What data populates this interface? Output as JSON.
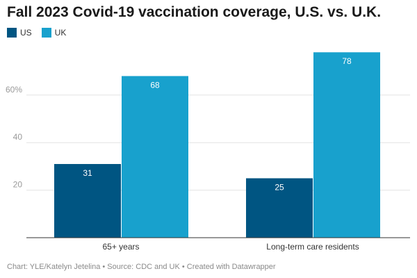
{
  "chart_data": {
    "type": "bar",
    "title": "Fall 2023 Covid-19 vaccination coverage, U.S. vs. U.K.",
    "categories": [
      "65+ years",
      "Long-term care residents"
    ],
    "series": [
      {
        "name": "US",
        "values": [
          31,
          25
        ],
        "color": "#005582"
      },
      {
        "name": "UK",
        "values": [
          68,
          78
        ],
        "color": "#18a1cd"
      }
    ],
    "yticks": [
      {
        "value": 20,
        "label": "20"
      },
      {
        "value": 40,
        "label": "40"
      },
      {
        "value": 60,
        "label": "60%"
      }
    ],
    "ylim": [
      0,
      80
    ],
    "grid": true,
    "legend_position": "top-left",
    "footer": "Chart: YLE/Katelyn Jetelina • Source: CDC and UK • Created with Datawrapper"
  }
}
